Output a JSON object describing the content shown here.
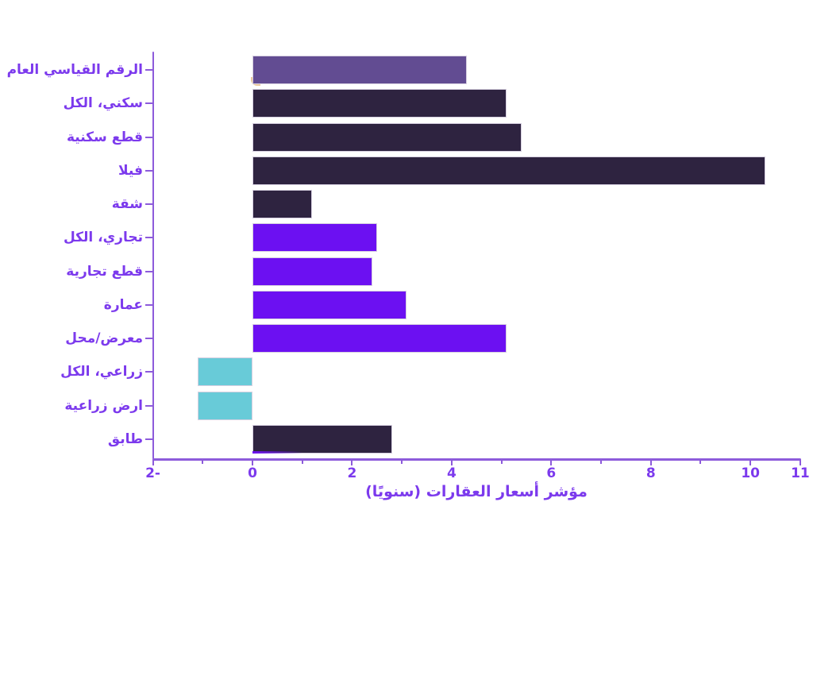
{
  "chart_data": {
    "type": "bar",
    "orientation": "horizontal",
    "title": "",
    "xlabel": "مؤشر أسعار العقارات (سنويًا)",
    "ylabel": "",
    "categories": [
      "الرقم القياسي العام",
      "سكني، الكل",
      "قطع سكنية",
      "فيلا",
      "شقة",
      "تجاري، الكل",
      "قطع تجارية",
      "عمارة",
      "معرض/محل",
      "زراعي، الكل",
      "ارض زراعية",
      "طابق"
    ],
    "values": [
      4.3,
      5.1,
      5.4,
      10.3,
      1.2,
      2.5,
      2.4,
      3.1,
      5.1,
      -1.1,
      -1.1,
      2.8
    ],
    "bar_colors": [
      "#624c92",
      "#2e2340",
      "#2e2340",
      "#2e2340",
      "#2e2340",
      "#6c10f2",
      "#6c10f2",
      "#6c10f2",
      "#6c10f2",
      "#68cbd8",
      "#68cbd8",
      "#2e2340"
    ],
    "xlim": [
      -2,
      11
    ],
    "x_tick_values": [
      -2,
      0,
      2,
      4,
      6,
      8,
      10,
      11
    ],
    "x_tick_labels": [
      "2-",
      "0",
      "2",
      "4",
      "6",
      "8",
      "10",
      "11"
    ],
    "minor_tick_values": [
      -1,
      1,
      3,
      5,
      7,
      9
    ],
    "grid": false,
    "legend": false
  },
  "colors": {
    "label_text": "#7c3aed",
    "axis": "#8d5bdb",
    "bar_border": "#d6cfe0",
    "artifact_tan": "#eac89c",
    "artifact_purple": "#6c10f2"
  },
  "artifacts": [
    {
      "name": "tan-sliver",
      "row": 0,
      "color": "#eac89c"
    },
    {
      "name": "purple-underline",
      "row": 11,
      "color": "#6c10f2"
    }
  ]
}
